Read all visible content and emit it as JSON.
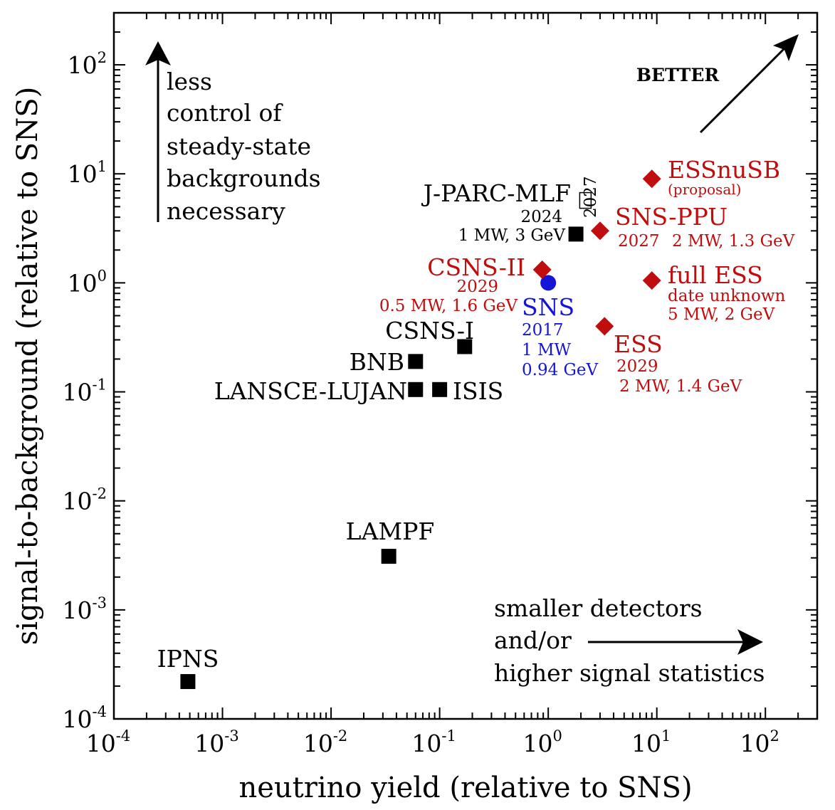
{
  "chart_data": {
    "type": "scatter",
    "xscale": "log",
    "yscale": "log",
    "xlim": [
      0.0001,
      300
    ],
    "ylim": [
      0.0001,
      300
    ],
    "xlabel": "neutrino yield (relative to SNS)",
    "ylabel": "signal-to-background (relative to SNS)",
    "x_ticks": [
      {
        "base": "10",
        "exp": "-4"
      },
      {
        "base": "10",
        "exp": "-3"
      },
      {
        "base": "10",
        "exp": "-2"
      },
      {
        "base": "10",
        "exp": "-1"
      },
      {
        "base": "10",
        "exp": "0"
      },
      {
        "base": "10",
        "exp": "1"
      },
      {
        "base": "10",
        "exp": "2"
      }
    ],
    "y_ticks": [
      {
        "base": "10",
        "exp": "-4"
      },
      {
        "base": "10",
        "exp": "-3"
      },
      {
        "base": "10",
        "exp": "-2"
      },
      {
        "base": "10",
        "exp": "-1"
      },
      {
        "base": "10",
        "exp": "0"
      },
      {
        "base": "10",
        "exp": "1"
      },
      {
        "base": "10",
        "exp": "2"
      }
    ],
    "colors": {
      "existing": "#000000",
      "sns": "#1515d8",
      "future": "#c00d0d"
    },
    "points": [
      {
        "name": "IPNS",
        "x": 0.00048,
        "y": 0.00022,
        "marker": "square",
        "group": "existing",
        "label": "IPNS",
        "label_pos": "above"
      },
      {
        "name": "LAMPF",
        "x": 0.034,
        "y": 0.0031,
        "marker": "square",
        "group": "existing",
        "label": "LAMPF",
        "label_pos": "above"
      },
      {
        "name": "BNB",
        "x": 0.06,
        "y": 0.19,
        "marker": "square",
        "group": "existing",
        "label": "BNB",
        "label_pos": "left"
      },
      {
        "name": "LANSCE-LUJAN",
        "x": 0.06,
        "y": 0.105,
        "marker": "square",
        "group": "existing",
        "label": "LANSCE-LUJAN",
        "label_pos": "left"
      },
      {
        "name": "ISIS",
        "x": 0.1,
        "y": 0.105,
        "marker": "square",
        "group": "existing",
        "label": "ISIS",
        "label_pos": "right"
      },
      {
        "name": "CSNS-I",
        "x": 0.17,
        "y": 0.26,
        "marker": "square",
        "group": "existing",
        "label": "CSNS-I",
        "label_pos": "above-left"
      },
      {
        "name": "J-PARC-MLF",
        "x": 1.8,
        "y": 2.8,
        "marker": "square",
        "group": "existing",
        "label": "J-PARC-MLF",
        "year": "2024",
        "details": "1 MW, 3 GeV",
        "label_pos": "left"
      },
      {
        "name": "J-PARC-MLF 2027",
        "x": 2.2,
        "y": 5.7,
        "marker": "open-square",
        "group": "existing",
        "label": "2027",
        "label_pos": "rotated-above"
      },
      {
        "name": "SNS",
        "x": 1.0,
        "y": 1.0,
        "marker": "circle",
        "group": "sns",
        "label": "SNS",
        "year": "2017",
        "details": [
          "1 MW",
          "0.94 GeV"
        ],
        "label_pos": "below"
      },
      {
        "name": "CSNS-II",
        "x": 0.88,
        "y": 1.32,
        "marker": "diamond",
        "group": "future",
        "label": "CSNS-II",
        "year": "2029",
        "details": "0.5 MW, 1.6 GeV",
        "label_pos": "left"
      },
      {
        "name": "SNS-PPU",
        "x": 3.0,
        "y": 3.0,
        "marker": "diamond",
        "group": "future",
        "label": "SNS-PPU",
        "year": "2027",
        "details": "2 MW, 1.3 GeV",
        "label_pos": "right"
      },
      {
        "name": "ESS",
        "x": 3.3,
        "y": 0.4,
        "marker": "diamond",
        "group": "future",
        "label": "ESS",
        "year": "2029",
        "details": "2 MW, 1.4 GeV",
        "label_pos": "below-right"
      },
      {
        "name": "full ESS",
        "x": 9.0,
        "y": 1.05,
        "marker": "diamond",
        "group": "future",
        "label": "full ESS",
        "year": "date unknown",
        "details": "5 MW, 2 GeV",
        "label_pos": "right"
      },
      {
        "name": "ESSnuSB",
        "x": 9.0,
        "y": 9.0,
        "marker": "diamond",
        "group": "future",
        "label": "ESSnuSB",
        "details": "(proposal)",
        "label_pos": "right"
      }
    ],
    "annotations": {
      "better": "BETTER",
      "up_text": [
        "less",
        "control of",
        "steady-state",
        "backgrounds",
        "necessary"
      ],
      "right_text": [
        "smaller detectors",
        "and/or",
        "higher signal statistics"
      ]
    }
  }
}
